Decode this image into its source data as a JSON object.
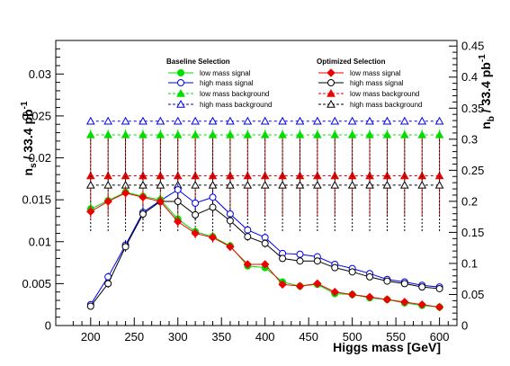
{
  "chart_data": {
    "type": "line",
    "xlabel": "Higgs mass [GeV]",
    "ylabel_left": "n_s / 33.4 pb^-1",
    "ylabel_right": "n_b / 33.4 pb^-1",
    "xlim": [
      160,
      620
    ],
    "ylim_left": [
      0,
      0.034
    ],
    "ylim_right": [
      0,
      0.459
    ],
    "x_ticks": [
      200,
      250,
      300,
      350,
      400,
      450,
      500,
      550,
      600
    ],
    "y_left_ticks": [
      "0",
      "0.005",
      "0.01",
      "0.015",
      "0.02",
      "0.025",
      "0.03"
    ],
    "y_right_ticks": [
      "0",
      "0.05",
      "0.1",
      "0.15",
      "0.2",
      "0.25",
      "0.3",
      "0.35",
      "0.4",
      "0.45"
    ],
    "x": [
      200,
      220,
      240,
      260,
      280,
      300,
      320,
      340,
      360,
      380,
      400,
      420,
      440,
      460,
      480,
      500,
      520,
      540,
      560,
      580,
      600
    ],
    "legend_groups": [
      {
        "title": "Baseline Selection",
        "position": "top-center"
      },
      {
        "title": "Optimized Selection",
        "position": "top-right"
      }
    ],
    "series": [
      {
        "name": "low mass signal",
        "group": 0,
        "axis": "left",
        "color": "#00dd00",
        "marker": "filled-circle",
        "line": "solid",
        "values": [
          0.0139,
          0.0149,
          0.0159,
          0.0154,
          0.015,
          0.0127,
          0.0112,
          0.0106,
          0.0095,
          0.0071,
          0.0069,
          0.0052,
          0.0047,
          0.0049,
          0.0038,
          0.0037,
          0.0033,
          0.0031,
          0.0027,
          0.0024,
          0.0022
        ],
        "errors": [
          0.0008,
          0.0008,
          0.0008,
          0.0008,
          0.0008,
          0.0007,
          0.0006,
          0.0006,
          0.0005,
          0.0004,
          0.0004,
          0.0003,
          0.0002,
          0.0002,
          0.0002,
          0.0002,
          0.0002,
          0.0001,
          0.0001,
          0.0001,
          0.0001
        ]
      },
      {
        "name": "high mass signal",
        "group": 0,
        "axis": "left",
        "color": "#0000ee",
        "marker": "open-circle",
        "line": "solid",
        "values": [
          0.0025,
          0.0058,
          0.0096,
          0.0135,
          0.0149,
          0.0162,
          0.0146,
          0.0153,
          0.0133,
          0.0114,
          0.0105,
          0.0086,
          0.0085,
          0.0082,
          0.0073,
          0.0068,
          0.0062,
          0.0055,
          0.0052,
          0.0048,
          0.0046
        ],
        "errors": [
          0.0004,
          0.0005,
          0.0006,
          0.0007,
          0.0007,
          0.0007,
          0.0007,
          0.0007,
          0.0006,
          0.0005,
          0.0005,
          0.0004,
          0.0004,
          0.0004,
          0.0003,
          0.0003,
          0.0003,
          0.0003,
          0.0002,
          0.0002,
          0.0002
        ]
      },
      {
        "name": "low mass background",
        "group": 0,
        "axis": "right",
        "color": "#00dd00",
        "marker": "filled-triangle",
        "line": "dashed",
        "values": [
          0.307,
          0.307,
          0.307,
          0.307,
          0.307,
          0.307,
          0.307,
          0.307,
          0.307,
          0.307,
          0.307,
          0.307,
          0.307,
          0.307,
          0.307,
          0.307,
          0.307,
          0.307,
          0.307,
          0.307,
          0.307
        ],
        "errors": [
          0.012,
          0.012,
          0.012,
          0.012,
          0.012,
          0.012,
          0.012,
          0.012,
          0.012,
          0.012,
          0.012,
          0.012,
          0.012,
          0.012,
          0.012,
          0.012,
          0.012,
          0.012,
          0.012,
          0.012,
          0.012
        ]
      },
      {
        "name": "high mass background",
        "group": 0,
        "axis": "right",
        "color": "#0000ee",
        "marker": "open-triangle",
        "line": "dashed",
        "values": [
          0.329,
          0.329,
          0.329,
          0.329,
          0.329,
          0.329,
          0.329,
          0.329,
          0.329,
          0.329,
          0.329,
          0.329,
          0.329,
          0.329,
          0.329,
          0.329,
          0.329,
          0.329,
          0.329,
          0.329,
          0.329
        ],
        "errors": [
          0.0,
          0.0,
          0.0,
          0.0,
          0.0,
          0.0,
          0.0,
          0.0,
          0.0,
          0.0,
          0.0,
          0.0,
          0.0,
          0.0,
          0.0,
          0.0,
          0.0,
          0.0,
          0.0,
          0.0,
          0.0
        ]
      },
      {
        "name": "low mass signal",
        "group": 1,
        "axis": "left",
        "color": "#ee0000",
        "marker": "filled-diamond",
        "line": "solid",
        "values": [
          0.0136,
          0.0148,
          0.0158,
          0.0153,
          0.0148,
          0.0124,
          0.011,
          0.0105,
          0.0094,
          0.0073,
          0.0073,
          0.0049,
          0.0047,
          0.005,
          0.004,
          0.0037,
          0.0034,
          0.0031,
          0.0028,
          0.0025,
          0.0022
        ],
        "errors": [
          0.0008,
          0.0008,
          0.0008,
          0.0008,
          0.0008,
          0.0007,
          0.0006,
          0.0006,
          0.0005,
          0.0004,
          0.0004,
          0.0003,
          0.0002,
          0.0002,
          0.0002,
          0.0002,
          0.0002,
          0.0001,
          0.0001,
          0.0001,
          0.0001
        ]
      },
      {
        "name": "high mass signal",
        "group": 1,
        "axis": "left",
        "color": "#000000",
        "marker": "open-circle",
        "line": "solid",
        "values": [
          0.0023,
          0.005,
          0.0094,
          0.0133,
          0.0148,
          0.0148,
          0.0132,
          0.0141,
          0.0125,
          0.0106,
          0.0098,
          0.008,
          0.0077,
          0.0077,
          0.0069,
          0.0064,
          0.0058,
          0.0053,
          0.005,
          0.0046,
          0.0044
        ],
        "errors": [
          0.0004,
          0.0005,
          0.0006,
          0.0007,
          0.0007,
          0.0007,
          0.0007,
          0.0007,
          0.0006,
          0.0005,
          0.0005,
          0.0004,
          0.0004,
          0.0004,
          0.0003,
          0.0003,
          0.0003,
          0.0003,
          0.0002,
          0.0002,
          0.0002
        ]
      },
      {
        "name": "low mass background",
        "group": 1,
        "axis": "right",
        "color": "#ee0000",
        "marker": "filled-triangle",
        "line": "dashed",
        "values": [
          0.241,
          0.241,
          0.241,
          0.241,
          0.241,
          0.241,
          0.241,
          0.241,
          0.241,
          0.241,
          0.241,
          0.241,
          0.241,
          0.241,
          0.241,
          0.241,
          0.241,
          0.241,
          0.241,
          0.241,
          0.241
        ],
        "errors": [
          0.063,
          0.063,
          0.063,
          0.063,
          0.063,
          0.063,
          0.063,
          0.063,
          0.063,
          0.063,
          0.063,
          0.063,
          0.063,
          0.063,
          0.063,
          0.063,
          0.063,
          0.063,
          0.063,
          0.063,
          0.063
        ]
      },
      {
        "name": "high mass background",
        "group": 1,
        "axis": "right",
        "color": "#000000",
        "marker": "open-triangle",
        "line": "dashed",
        "values": [
          0.226,
          0.226,
          0.226,
          0.226,
          0.226,
          0.226,
          0.226,
          0.226,
          0.226,
          0.226,
          0.226,
          0.226,
          0.226,
          0.226,
          0.226,
          0.226,
          0.226,
          0.226,
          0.226,
          0.226,
          0.226
        ],
        "errors": [
          0.074,
          0.074,
          0.074,
          0.074,
          0.074,
          0.074,
          0.074,
          0.074,
          0.074,
          0.074,
          0.074,
          0.074,
          0.074,
          0.074,
          0.074,
          0.074,
          0.074,
          0.074,
          0.074,
          0.074,
          0.074
        ]
      }
    ]
  }
}
